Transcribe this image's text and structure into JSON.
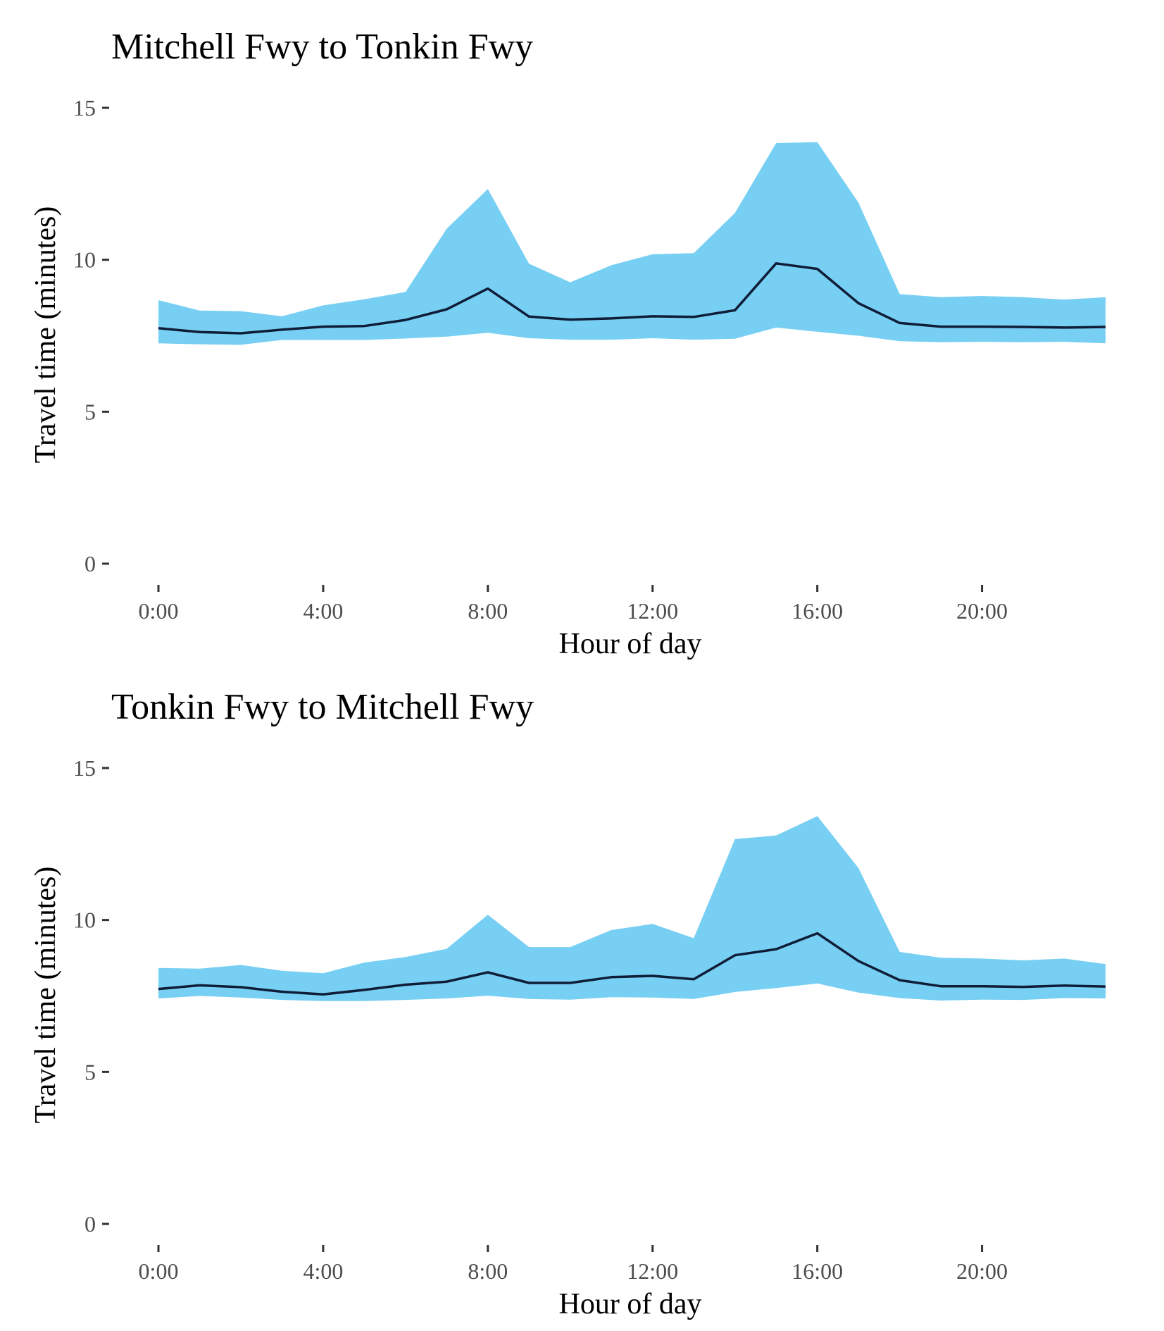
{
  "colors": {
    "band": "#77cff3",
    "line": "#0f1d38",
    "tick_text": "#4d4d4d",
    "tick_mark": "#333333"
  },
  "chart_data": [
    {
      "type": "area",
      "title": "Mitchell Fwy to Tonkin Fwy",
      "xlabel": "Hour of day",
      "ylabel": "Travel time (minutes)",
      "ylim": [
        0,
        15
      ],
      "xlim": [
        0,
        23
      ],
      "yticks": [
        0,
        5,
        10,
        15
      ],
      "ytick_labels": [
        "0",
        "5",
        "10",
        "15"
      ],
      "xticks": [
        0,
        4,
        8,
        12,
        16,
        20
      ],
      "xtick_labels": [
        "0:00",
        "4:00",
        "8:00",
        "12:00",
        "16:00",
        "20:00"
      ],
      "x": [
        0,
        1,
        2,
        3,
        4,
        5,
        6,
        7,
        8,
        9,
        10,
        11,
        12,
        13,
        14,
        15,
        16,
        17,
        18,
        19,
        20,
        21,
        22,
        23
      ],
      "median": [
        7.75,
        7.62,
        7.58,
        7.7,
        7.8,
        7.82,
        8.02,
        8.37,
        9.05,
        8.13,
        8.03,
        8.07,
        8.14,
        8.12,
        8.34,
        9.88,
        9.7,
        8.57,
        7.92,
        7.8,
        7.8,
        7.79,
        7.77,
        7.79
      ],
      "upper": [
        8.67,
        8.33,
        8.31,
        8.14,
        8.5,
        8.7,
        8.94,
        11.02,
        12.33,
        9.87,
        9.26,
        9.82,
        10.18,
        10.22,
        11.54,
        13.84,
        13.87,
        11.88,
        8.87,
        8.77,
        8.81,
        8.77,
        8.69,
        8.77
      ],
      "lower": [
        7.25,
        7.22,
        7.2,
        7.36,
        7.36,
        7.36,
        7.41,
        7.47,
        7.6,
        7.42,
        7.37,
        7.37,
        7.42,
        7.37,
        7.4,
        7.77,
        7.63,
        7.5,
        7.32,
        7.29,
        7.3,
        7.29,
        7.3,
        7.25
      ],
      "grid": false,
      "legend": "none"
    },
    {
      "type": "area",
      "title": "Tonkin Fwy to Mitchell Fwy",
      "xlabel": "Hour of day",
      "ylabel": "Travel time (minutes)",
      "ylim": [
        0,
        15
      ],
      "xlim": [
        0,
        23
      ],
      "yticks": [
        0,
        5,
        10,
        15
      ],
      "ytick_labels": [
        "0",
        "5",
        "10",
        "15"
      ],
      "xticks": [
        0,
        4,
        8,
        12,
        16,
        20
      ],
      "xtick_labels": [
        "0:00",
        "4:00",
        "8:00",
        "12:00",
        "16:00",
        "20:00"
      ],
      "x": [
        0,
        1,
        2,
        3,
        4,
        5,
        6,
        7,
        8,
        9,
        10,
        11,
        12,
        13,
        14,
        15,
        16,
        17,
        18,
        19,
        20,
        21,
        22,
        23
      ],
      "median": [
        7.73,
        7.85,
        7.79,
        7.64,
        7.55,
        7.7,
        7.87,
        7.97,
        8.28,
        7.93,
        7.93,
        8.12,
        8.16,
        8.05,
        8.84,
        9.04,
        9.56,
        8.65,
        8.02,
        7.82,
        7.82,
        7.8,
        7.84,
        7.81
      ],
      "upper": [
        8.42,
        8.4,
        8.52,
        8.33,
        8.25,
        8.6,
        8.78,
        9.05,
        10.17,
        9.11,
        9.11,
        9.67,
        9.87,
        9.4,
        12.66,
        12.78,
        13.42,
        11.71,
        8.95,
        8.76,
        8.73,
        8.67,
        8.73,
        8.55
      ],
      "lower": [
        7.42,
        7.5,
        7.45,
        7.37,
        7.33,
        7.33,
        7.37,
        7.42,
        7.51,
        7.4,
        7.38,
        7.46,
        7.45,
        7.4,
        7.63,
        7.76,
        7.91,
        7.61,
        7.43,
        7.35,
        7.38,
        7.37,
        7.43,
        7.42
      ],
      "grid": false,
      "legend": "none"
    }
  ]
}
